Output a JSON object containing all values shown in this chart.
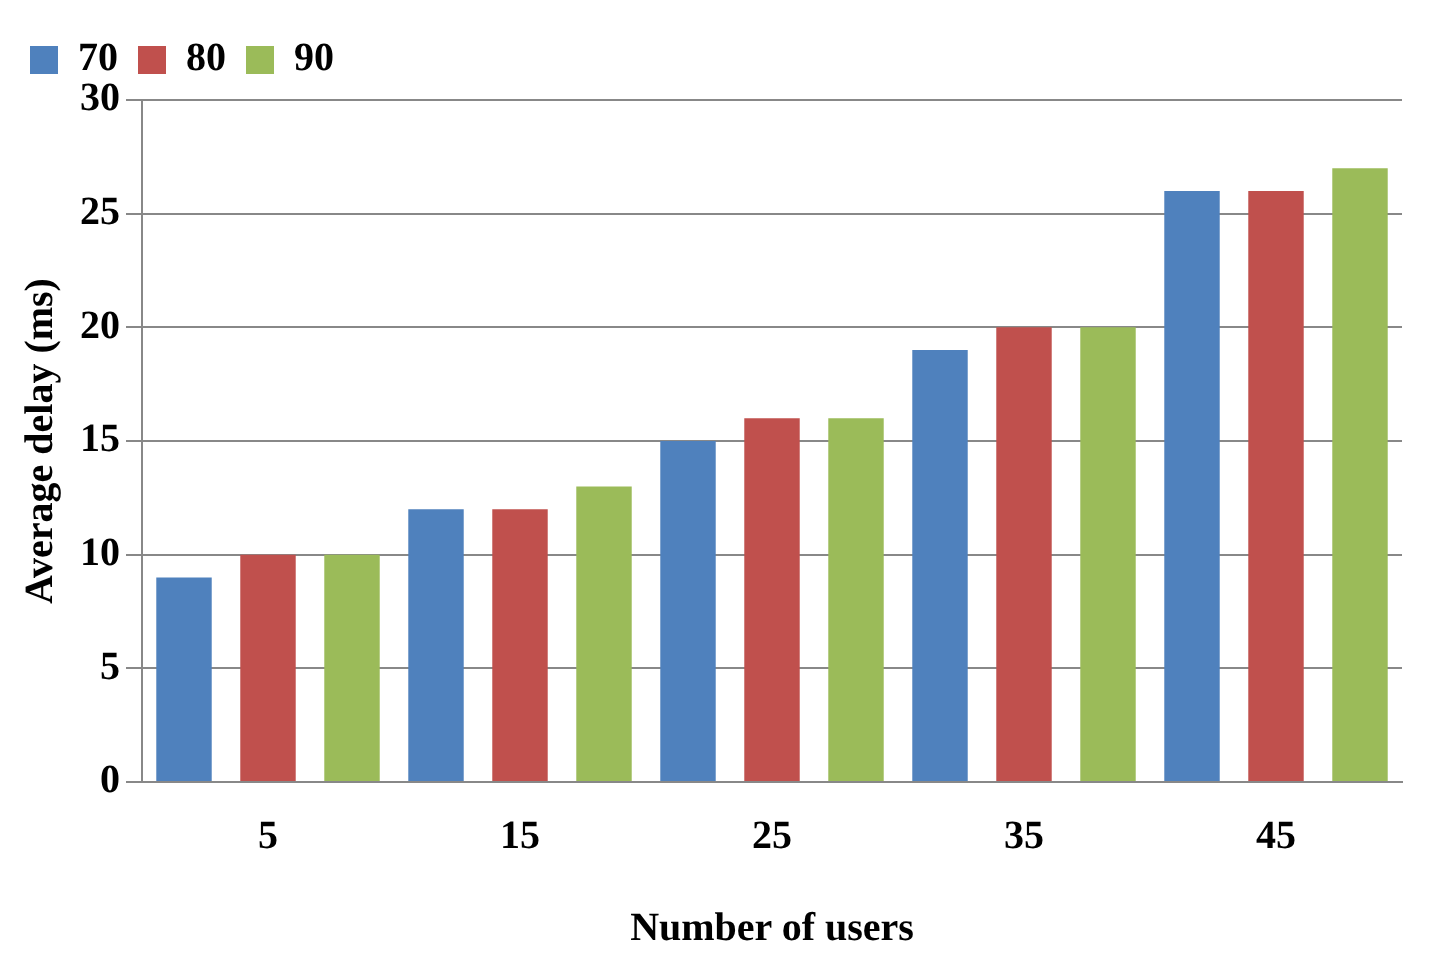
{
  "chart_data": {
    "type": "bar",
    "xlabel": "Number of users",
    "ylabel": "Average delay (ms)",
    "categories": [
      "5",
      "15",
      "25",
      "35",
      "45"
    ],
    "series": [
      {
        "name": "70",
        "color": "#4f81bd",
        "values": [
          9,
          12,
          15,
          19,
          26
        ]
      },
      {
        "name": "80",
        "color": "#c0504d",
        "values": [
          10,
          12,
          16,
          20,
          26
        ]
      },
      {
        "name": "90",
        "color": "#9bbb59",
        "values": [
          10,
          13,
          16,
          20,
          27
        ]
      }
    ],
    "ylim": [
      0,
      30
    ],
    "yticks": [
      0,
      5,
      10,
      15,
      20,
      25,
      30
    ],
    "grid": "y",
    "legend": "top left"
  }
}
